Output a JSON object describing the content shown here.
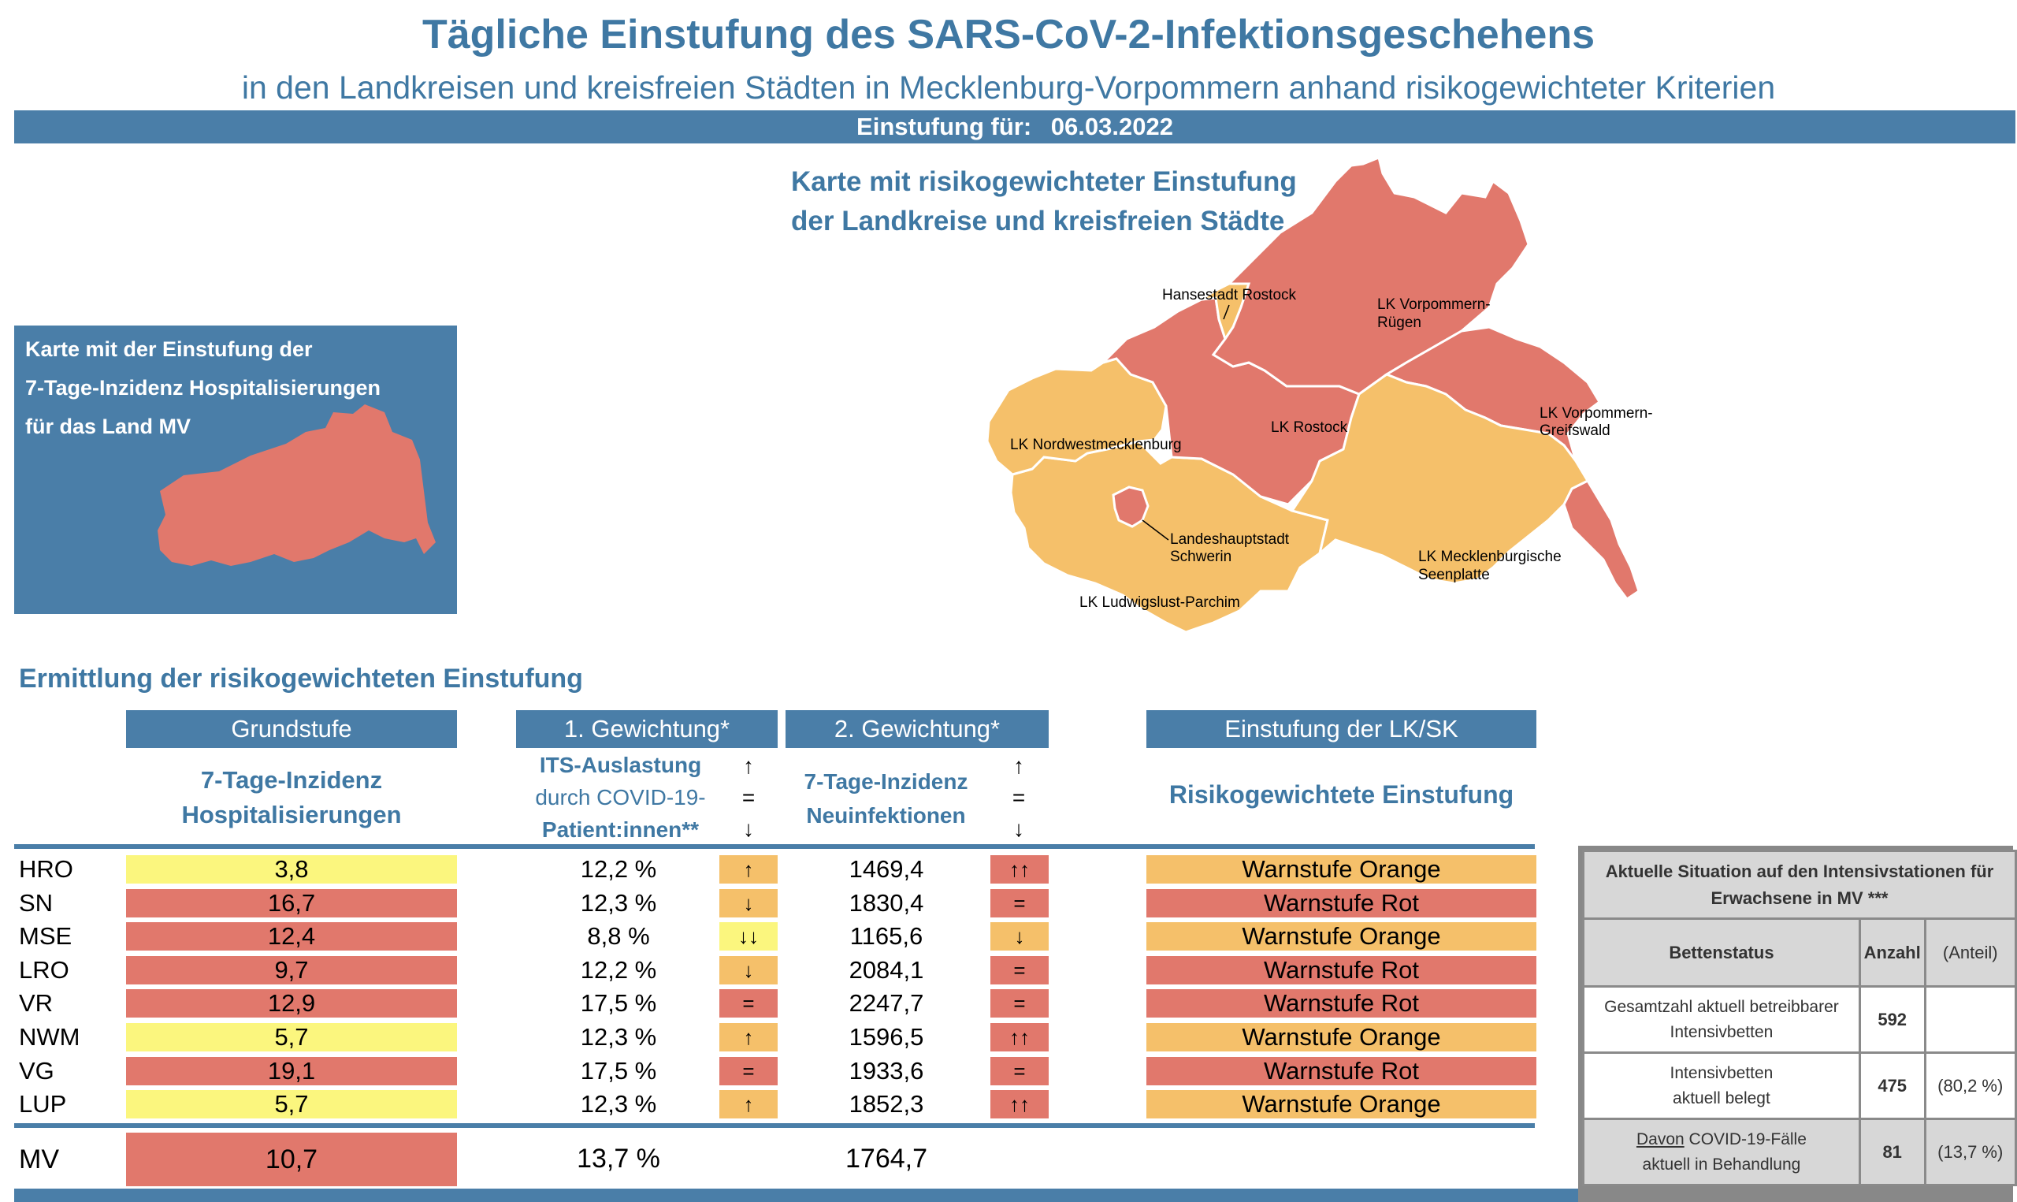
{
  "header": {
    "title": "Tägliche Einstufung des SARS-CoV-2-Infektionsgeschehens",
    "subtitle": "in den Landkreisen und kreisfreien Städten in Mecklenburg-Vorpommern anhand risikogewichteter Kriterien",
    "date_label": "Einstufung für:",
    "date_value": "06.03.2022"
  },
  "map": {
    "title_line1": "Karte mit risikogewichteter Einstufung",
    "title_line2": "der Landkreise und kreisfreien Städte",
    "labels": {
      "hro": "Hansestadt Rostock",
      "vr1": "LK Vorpommern-",
      "vr2": "Rügen",
      "nwm": "LK Nordwestmecklenburg",
      "lro": "LK Rostock",
      "vg1": "LK Vorpommern-",
      "vg2": "Greifswald",
      "sn1": "Landeshauptstadt",
      "sn2": "Schwerin",
      "mse1": "LK Mecklenburgische",
      "mse2": "Seenplatte",
      "lup": "LK Ludwigslust-Parchim"
    },
    "colors": {
      "red": "#e1786c",
      "orange": "#f5c06a"
    }
  },
  "state_box": {
    "line1": "Karte mit der Einstufung der",
    "line2": "7-Tage-Inzidenz Hospitalisierungen",
    "line3": "für das Land MV"
  },
  "table": {
    "section_title": "Ermittlung der risikogewichteten Einstufung",
    "headers": {
      "grundstufe": "Grundstufe",
      "gew1": "1. Gewichtung*",
      "gew2": "2. Gewichtung*",
      "einstufung": "Einstufung der LK/SK"
    },
    "subheaders": {
      "grund1": "7-Tage-Inzidenz",
      "grund2": "Hospitalisierungen",
      "its1": "ITS-Auslastung",
      "its2": "durch COVID-19-",
      "its3": "Patient:innen**",
      "neu1": "7-Tage-Inzidenz",
      "neu2": "Neuinfektionen",
      "risk": "Risikogewichtete Einstufung"
    },
    "arrow_legend": {
      "up": "↑",
      "eq": "=",
      "down": "↓"
    },
    "rows": [
      {
        "name": "HRO",
        "hosp": "3,8",
        "hosp_color": "yellow",
        "its": "12,2 %",
        "its_arrow": "↑",
        "its_arrow_color": "orange",
        "neu": "1469,4",
        "neu_arrow": "↑↑",
        "neu_arrow_color": "red",
        "stufe": "Warnstufe Orange",
        "stufe_color": "orange"
      },
      {
        "name": "SN",
        "hosp": "16,7",
        "hosp_color": "red",
        "its": "12,3 %",
        "its_arrow": "↓",
        "its_arrow_color": "orange",
        "neu": "1830,4",
        "neu_arrow": "=",
        "neu_arrow_color": "red",
        "stufe": "Warnstufe Rot",
        "stufe_color": "red"
      },
      {
        "name": "MSE",
        "hosp": "12,4",
        "hosp_color": "red",
        "its": "8,8 %",
        "its_arrow": "↓↓",
        "its_arrow_color": "yellow",
        "neu": "1165,6",
        "neu_arrow": "↓",
        "neu_arrow_color": "orange",
        "stufe": "Warnstufe Orange",
        "stufe_color": "orange"
      },
      {
        "name": "LRO",
        "hosp": "9,7",
        "hosp_color": "red",
        "its": "12,2 %",
        "its_arrow": "↓",
        "its_arrow_color": "orange",
        "neu": "2084,1",
        "neu_arrow": "=",
        "neu_arrow_color": "red",
        "stufe": "Warnstufe Rot",
        "stufe_color": "red"
      },
      {
        "name": "VR",
        "hosp": "12,9",
        "hosp_color": "red",
        "its": "17,5 %",
        "its_arrow": "=",
        "its_arrow_color": "red",
        "neu": "2247,7",
        "neu_arrow": "=",
        "neu_arrow_color": "red",
        "stufe": "Warnstufe Rot",
        "stufe_color": "red"
      },
      {
        "name": "NWM",
        "hosp": "5,7",
        "hosp_color": "yellow",
        "its": "12,3 %",
        "its_arrow": "↑",
        "its_arrow_color": "orange",
        "neu": "1596,5",
        "neu_arrow": "↑↑",
        "neu_arrow_color": "red",
        "stufe": "Warnstufe Orange",
        "stufe_color": "orange"
      },
      {
        "name": "VG",
        "hosp": "19,1",
        "hosp_color": "red",
        "its": "17,5 %",
        "its_arrow": "=",
        "its_arrow_color": "red",
        "neu": "1933,6",
        "neu_arrow": "=",
        "neu_arrow_color": "red",
        "stufe": "Warnstufe Rot",
        "stufe_color": "red"
      },
      {
        "name": "LUP",
        "hosp": "5,7",
        "hosp_color": "yellow",
        "its": "12,3 %",
        "its_arrow": "↑",
        "its_arrow_color": "orange",
        "neu": "1852,3",
        "neu_arrow": "↑↑",
        "neu_arrow_color": "red",
        "stufe": "Warnstufe Orange",
        "stufe_color": "orange"
      }
    ],
    "total": {
      "name": "MV",
      "hosp": "10,7",
      "hosp_color": "red",
      "its": "13,7 %",
      "neu": "1764,7"
    }
  },
  "icu": {
    "title_line1": "Aktuelle Situation auf den Intensivstationen für",
    "title_line2": "Erwachsene in MV ***",
    "col_status": "Bettenstatus",
    "col_anzahl": "Anzahl",
    "col_anteil": "(Anteil)",
    "rows": [
      {
        "l1": "Gesamtzahl aktuell betreibbarer",
        "l2": "Intensivbetten",
        "count": "592",
        "share": ""
      },
      {
        "l1": "Intensivbetten",
        "l2": "aktuell belegt",
        "count": "475",
        "share": "(80,2 %)"
      },
      {
        "l1_u": "Davon",
        "l1": " COVID-19-Fälle",
        "l2": "aktuell in Behandlung",
        "count": "81",
        "share": "(13,7 %)"
      }
    ]
  }
}
